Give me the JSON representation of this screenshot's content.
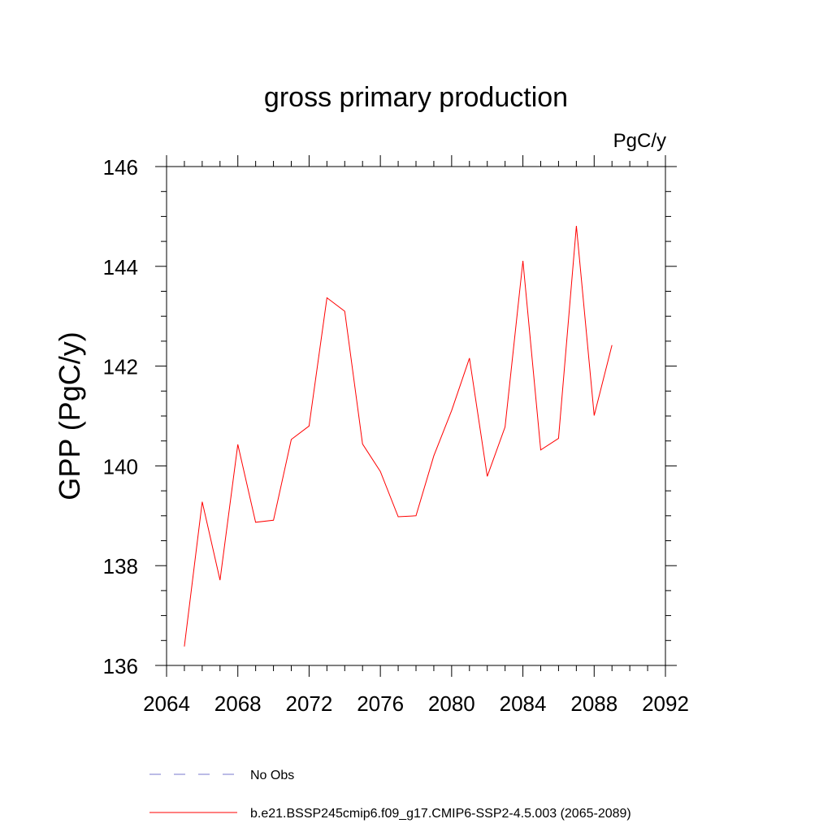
{
  "chart_data": {
    "type": "line",
    "title": "gross primary production",
    "units_label": "PgC/y",
    "xlabel": "",
    "ylabel": "GPP  (PgC/y)",
    "xlim": [
      2064,
      2092
    ],
    "ylim": [
      136,
      146
    ],
    "x_ticks": [
      2064,
      2068,
      2072,
      2076,
      2080,
      2084,
      2088,
      2092
    ],
    "x_minor_step": 1,
    "y_ticks": [
      136,
      138,
      140,
      142,
      144,
      146
    ],
    "y_minor_step": 0.5,
    "grid": false,
    "series": [
      {
        "name": "b.e21.BSSP245cmip6.f09_g17.CMIP6-SSP2-4.5.003 (2065-2089)",
        "color": "#ff0000",
        "style": "solid",
        "x": [
          2065,
          2066,
          2067,
          2068,
          2069,
          2070,
          2071,
          2072,
          2073,
          2074,
          2075,
          2076,
          2077,
          2078,
          2079,
          2080,
          2081,
          2082,
          2083,
          2084,
          2085,
          2086,
          2087,
          2088,
          2089
        ],
        "y": [
          136.38,
          139.28,
          137.71,
          140.43,
          138.87,
          138.91,
          140.53,
          140.8,
          143.37,
          143.1,
          140.44,
          139.89,
          138.98,
          139.0,
          140.2,
          141.11,
          142.16,
          139.79,
          140.78,
          144.11,
          140.32,
          140.55,
          144.81,
          141.01,
          142.42
        ]
      }
    ],
    "legend": {
      "placement": "bottom",
      "entries": [
        {
          "label": "No Obs",
          "color": "#7777cc",
          "style": "dashed"
        },
        {
          "label": "b.e21.BSSP245cmip6.f09_g17.CMIP6-SSP2-4.5.003 (2065-2089)",
          "color": "#ff0000",
          "style": "solid"
        }
      ]
    }
  }
}
